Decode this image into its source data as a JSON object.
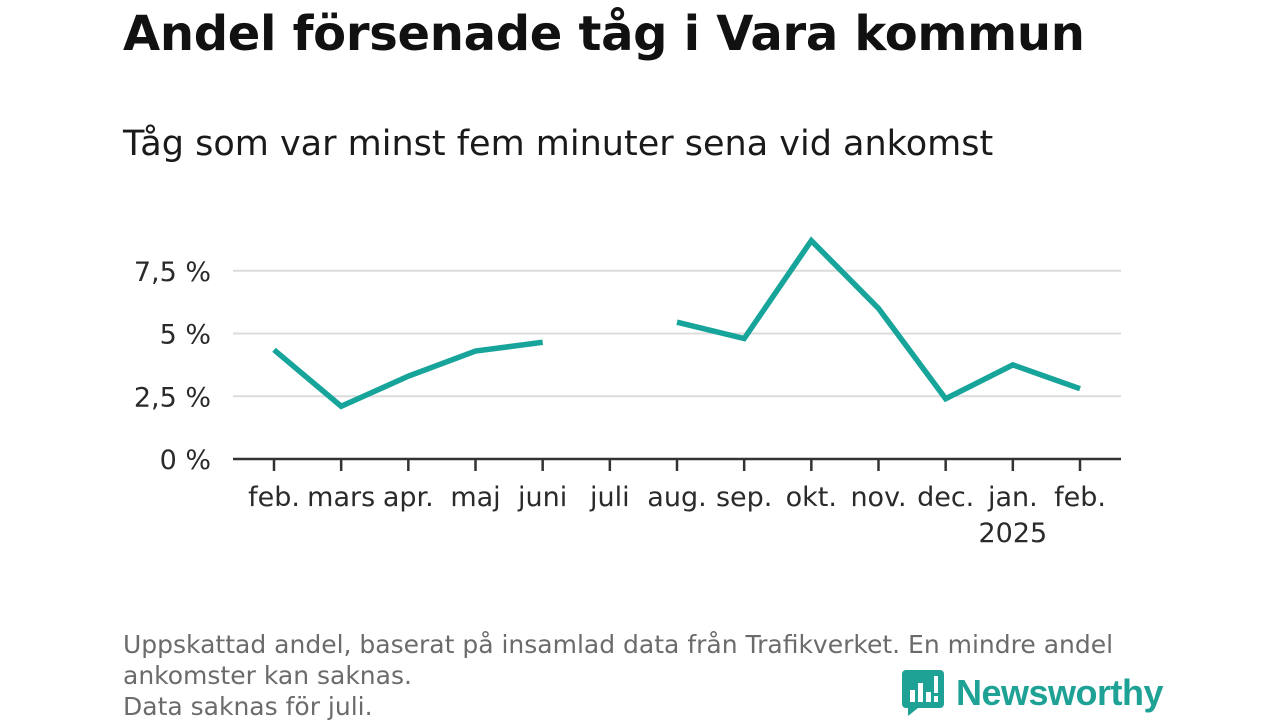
{
  "title": "Andel försenade tåg i Vara kommun",
  "subtitle": "Tåg som var minst fem minuter sena vid ankomst",
  "chart_data": {
    "type": "line",
    "x": [
      "feb.",
      "mars",
      "apr.",
      "maj",
      "juni",
      "juli",
      "aug.",
      "sep.",
      "okt.",
      "nov.",
      "dec.",
      "jan.",
      "feb."
    ],
    "x_sublabels": [
      "",
      "",
      "",
      "",
      "",
      "",
      "",
      "",
      "",
      "",
      "",
      "2025",
      ""
    ],
    "series": [
      {
        "values": [
          4.35,
          2.1,
          3.3,
          4.3,
          4.65,
          null,
          5.45,
          4.8,
          8.7,
          6.0,
          2.4,
          3.75,
          2.8
        ]
      }
    ],
    "yticks": [
      0,
      2.5,
      5,
      7.5
    ],
    "ytick_labels": [
      "0 %",
      "2,5 %",
      "5 %",
      "7,5 %"
    ],
    "ylim": [
      0,
      8.8
    ],
    "grid": true,
    "line_color": "#17a49a"
  },
  "footer": {
    "lines": [
      "Uppskattad andel, baserat på insamlad data från Trafikverket. En mindre andel",
      "ankomster kan saknas.",
      "Data saknas för juli."
    ]
  },
  "brand": {
    "name": "Newsworthy",
    "color": "#1ea295",
    "icon": "bar-chart-speech-icon"
  }
}
